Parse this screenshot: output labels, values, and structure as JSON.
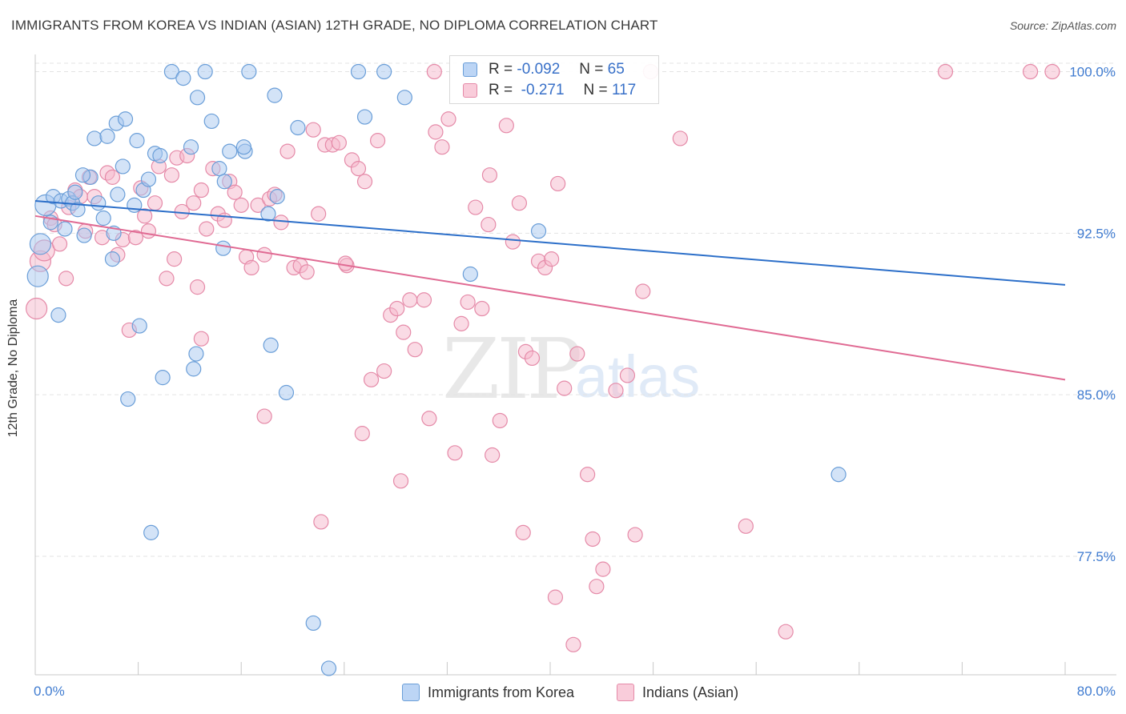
{
  "title": "IMMIGRANTS FROM KOREA VS INDIAN (ASIAN) 12TH GRADE, NO DIPLOMA CORRELATION CHART",
  "source": "Source: ZipAtlas.com",
  "watermark": {
    "zip": "ZIP",
    "atlas": "atlas"
  },
  "stats": {
    "korea": {
      "r_label": "R =",
      "r": "-0.092",
      "n_label": "N =",
      "n": "65"
    },
    "indian": {
      "r_label": "R =",
      "r": "-0.271",
      "n_label": "N =",
      "n": "117"
    }
  },
  "legend": {
    "korea": "Immigrants from Korea",
    "indian": "Indians (Asian)"
  },
  "colors": {
    "korea_fill": "#a8c8f0",
    "korea_stroke": "#6a9ed8",
    "korea_line": "#2c6fc9",
    "indian_fill": "#f6b8cc",
    "indian_stroke": "#e58aa8",
    "indian_line": "#e06a93",
    "tick_label": "#3f7bd0",
    "grid": "#e3e3e3"
  },
  "chart_data": {
    "type": "scatter",
    "title": "IMMIGRANTS FROM KOREA VS INDIAN (ASIAN) 12TH GRADE, NO DIPLOMA CORRELATION CHART",
    "xlabel": "",
    "ylabel": "12th Grade, No Diploma",
    "xlim": [
      0,
      80
    ],
    "ylim": [
      72,
      100.8
    ],
    "x_tick_labels": [
      "0.0%",
      "80.0%"
    ],
    "y_ticks": [
      100,
      92.5,
      85,
      77.5
    ],
    "y_tick_labels": [
      "100.0%",
      "92.5%",
      "85.0%",
      "77.5%"
    ],
    "grid": true,
    "legend_position": "bottom-center",
    "series": [
      {
        "name": "Immigrants from Korea",
        "trend": {
          "x": [
            0,
            80
          ],
          "y": [
            94.0,
            90.1
          ]
        },
        "points": [
          [
            0.2,
            90.5
          ],
          [
            0.4,
            92.0
          ],
          [
            0.8,
            93.8
          ],
          [
            1.2,
            93.0
          ],
          [
            1.4,
            94.2
          ],
          [
            1.8,
            88.7
          ],
          [
            2.0,
            94.0
          ],
          [
            2.3,
            92.7
          ],
          [
            2.6,
            94.1
          ],
          [
            2.9,
            93.9
          ],
          [
            3.1,
            94.4
          ],
          [
            3.8,
            92.4
          ],
          [
            4.3,
            95.1
          ],
          [
            4.6,
            96.9
          ],
          [
            4.9,
            93.9
          ],
          [
            5.3,
            93.2
          ],
          [
            5.6,
            97.0
          ],
          [
            6.0,
            91.3
          ],
          [
            6.3,
            97.6
          ],
          [
            6.4,
            94.3
          ],
          [
            6.8,
            95.6
          ],
          [
            7.0,
            97.8
          ],
          [
            7.7,
            93.8
          ],
          [
            7.9,
            96.8
          ],
          [
            8.1,
            88.2
          ],
          [
            8.4,
            94.5
          ],
          [
            8.8,
            95.0
          ],
          [
            9.3,
            96.2
          ],
          [
            9.9,
            85.8
          ],
          [
            10.6,
            100.0
          ],
          [
            11.5,
            99.7
          ],
          [
            12.1,
            96.5
          ],
          [
            12.3,
            86.2
          ],
          [
            12.6,
            98.8
          ],
          [
            13.2,
            100.0
          ],
          [
            13.7,
            97.7
          ],
          [
            14.3,
            95.5
          ],
          [
            14.7,
            94.9
          ],
          [
            15.1,
            96.3
          ],
          [
            16.3,
            96.3
          ],
          [
            16.6,
            100.0
          ],
          [
            18.1,
            93.4
          ],
          [
            18.6,
            98.9
          ],
          [
            18.8,
            94.2
          ],
          [
            19.5,
            85.1
          ],
          [
            20.4,
            97.4
          ],
          [
            21.6,
            74.4
          ],
          [
            22.8,
            72.3
          ],
          [
            25.1,
            100.0
          ],
          [
            25.6,
            97.9
          ],
          [
            27.1,
            100.0
          ],
          [
            28.7,
            98.8
          ],
          [
            33.8,
            90.6
          ],
          [
            39.1,
            92.6
          ],
          [
            62.4,
            81.3
          ],
          [
            7.2,
            84.8
          ],
          [
            9.0,
            78.6
          ],
          [
            12.5,
            86.9
          ],
          [
            14.6,
            91.8
          ],
          [
            18.3,
            87.3
          ],
          [
            3.7,
            95.2
          ],
          [
            6.1,
            92.5
          ],
          [
            9.7,
            96.1
          ],
          [
            3.3,
            93.6
          ],
          [
            16.2,
            96.5
          ]
        ]
      },
      {
        "name": "Indians (Asian)",
        "trend": {
          "x": [
            0,
            80
          ],
          "y": [
            93.3,
            85.7
          ]
        },
        "points": [
          [
            0.1,
            89.0
          ],
          [
            0.4,
            91.2
          ],
          [
            0.7,
            91.7
          ],
          [
            1.2,
            93.2
          ],
          [
            1.5,
            92.9
          ],
          [
            1.9,
            92.0
          ],
          [
            2.4,
            90.4
          ],
          [
            2.6,
            93.7
          ],
          [
            3.1,
            94.5
          ],
          [
            3.5,
            94.2
          ],
          [
            3.9,
            92.6
          ],
          [
            4.2,
            95.1
          ],
          [
            4.6,
            94.2
          ],
          [
            5.2,
            92.3
          ],
          [
            5.6,
            95.3
          ],
          [
            6.0,
            95.1
          ],
          [
            6.4,
            91.5
          ],
          [
            6.8,
            92.2
          ],
          [
            7.3,
            88.0
          ],
          [
            7.8,
            92.3
          ],
          [
            8.2,
            94.6
          ],
          [
            8.5,
            93.3
          ],
          [
            8.8,
            92.6
          ],
          [
            9.3,
            93.9
          ],
          [
            9.6,
            95.6
          ],
          [
            10.2,
            90.4
          ],
          [
            10.6,
            95.2
          ],
          [
            11.0,
            96.0
          ],
          [
            11.4,
            93.5
          ],
          [
            11.8,
            96.1
          ],
          [
            12.3,
            93.9
          ],
          [
            12.6,
            90.0
          ],
          [
            12.9,
            94.5
          ],
          [
            13.3,
            92.7
          ],
          [
            13.8,
            95.5
          ],
          [
            14.2,
            93.4
          ],
          [
            14.7,
            93.1
          ],
          [
            15.1,
            94.9
          ],
          [
            15.5,
            94.4
          ],
          [
            16.0,
            93.8
          ],
          [
            16.4,
            91.4
          ],
          [
            16.8,
            90.9
          ],
          [
            17.3,
            93.8
          ],
          [
            17.8,
            91.5
          ],
          [
            18.2,
            94.1
          ],
          [
            18.6,
            94.3
          ],
          [
            19.1,
            93.0
          ],
          [
            19.6,
            96.3
          ],
          [
            20.1,
            90.9
          ],
          [
            20.6,
            91.0
          ],
          [
            21.1,
            90.7
          ],
          [
            21.6,
            97.3
          ],
          [
            22.0,
            93.4
          ],
          [
            22.5,
            96.6
          ],
          [
            23.1,
            96.6
          ],
          [
            23.6,
            96.7
          ],
          [
            24.2,
            91.0
          ],
          [
            24.6,
            95.9
          ],
          [
            25.1,
            95.5
          ],
          [
            25.6,
            94.9
          ],
          [
            26.1,
            85.7
          ],
          [
            26.6,
            96.8
          ],
          [
            27.1,
            86.1
          ],
          [
            27.6,
            88.7
          ],
          [
            28.1,
            89.0
          ],
          [
            28.6,
            87.9
          ],
          [
            29.1,
            89.4
          ],
          [
            29.5,
            87.1
          ],
          [
            30.2,
            89.4
          ],
          [
            30.6,
            83.9
          ],
          [
            31.1,
            97.2
          ],
          [
            31.6,
            96.5
          ],
          [
            32.1,
            97.8
          ],
          [
            32.6,
            82.3
          ],
          [
            33.1,
            88.3
          ],
          [
            33.6,
            89.3
          ],
          [
            34.2,
            93.7
          ],
          [
            34.7,
            89.0
          ],
          [
            35.2,
            92.9
          ],
          [
            35.5,
            82.2
          ],
          [
            36.1,
            83.8
          ],
          [
            36.6,
            97.5
          ],
          [
            37.1,
            92.1
          ],
          [
            37.6,
            93.9
          ],
          [
            38.1,
            87.0
          ],
          [
            38.6,
            86.7
          ],
          [
            39.1,
            91.2
          ],
          [
            39.6,
            90.9
          ],
          [
            40.1,
            91.3
          ],
          [
            40.6,
            94.8
          ],
          [
            41.1,
            85.3
          ],
          [
            42.1,
            86.9
          ],
          [
            42.9,
            81.3
          ],
          [
            43.3,
            78.3
          ],
          [
            44.1,
            76.9
          ],
          [
            45.1,
            85.2
          ],
          [
            46.0,
            85.9
          ],
          [
            46.6,
            78.5
          ],
          [
            47.2,
            89.8
          ],
          [
            50.1,
            96.9
          ],
          [
            55.2,
            78.9
          ],
          [
            58.3,
            74.0
          ],
          [
            70.7,
            100.0
          ],
          [
            77.3,
            100.0
          ],
          [
            79.0,
            100.0
          ],
          [
            47.8,
            100.0
          ],
          [
            31.0,
            100.0
          ],
          [
            40.4,
            75.6
          ],
          [
            41.8,
            73.4
          ],
          [
            43.6,
            76.1
          ],
          [
            35.3,
            95.2
          ],
          [
            28.4,
            81.0
          ],
          [
            22.2,
            79.1
          ],
          [
            17.8,
            84.0
          ],
          [
            24.1,
            91.1
          ],
          [
            37.9,
            78.6
          ],
          [
            25.4,
            83.2
          ],
          [
            10.8,
            91.3
          ],
          [
            12.9,
            87.6
          ]
        ]
      }
    ]
  }
}
